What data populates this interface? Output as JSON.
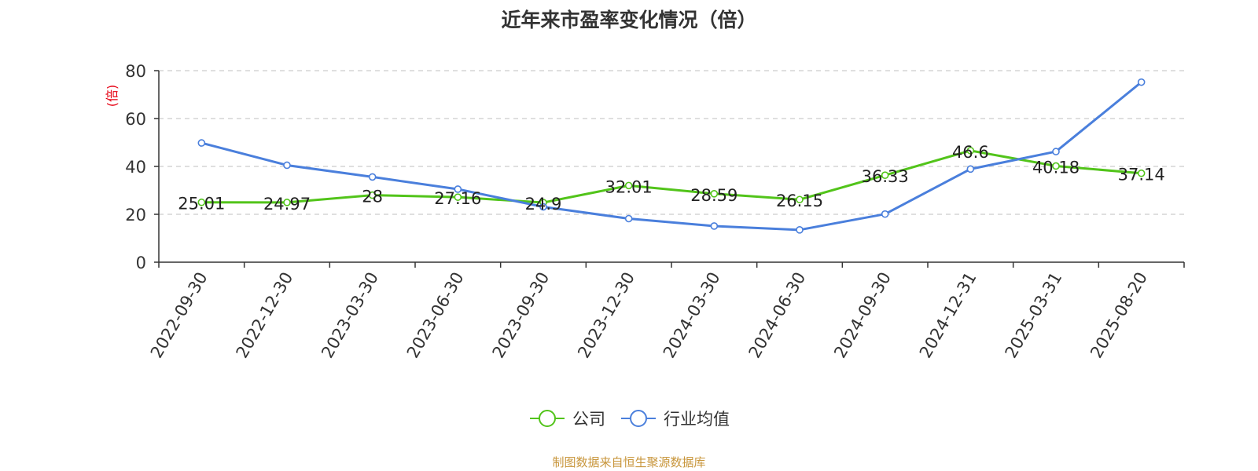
{
  "chart_data": {
    "type": "line",
    "title": "近年来市盈率变化情况（倍）",
    "xlabel": "",
    "ylabel": "(倍)",
    "ylim": [
      0,
      80
    ],
    "yticks": [
      0,
      20,
      40,
      60,
      80
    ],
    "grid": true,
    "legend_position": "bottom-center",
    "categories": [
      "2022-09-30",
      "2022-12-30",
      "2023-03-30",
      "2023-06-30",
      "2023-09-30",
      "2023-12-30",
      "2024-03-30",
      "2024-06-30",
      "2024-09-30",
      "2024-12-31",
      "2025-03-31",
      "2025-08-20"
    ],
    "series": [
      {
        "name": "公司",
        "color": "#52c41a",
        "show_labels": true,
        "values": [
          25.01,
          24.97,
          28,
          27.16,
          24.9,
          32.01,
          28.59,
          26.15,
          36.33,
          46.6,
          40.18,
          37.14
        ]
      },
      {
        "name": "行业均值",
        "color": "#4a7fdc",
        "show_labels": false,
        "values": [
          49.8,
          40.5,
          35.6,
          30.5,
          23.1,
          18.2,
          15.1,
          13.5,
          20.1,
          38.9,
          46.2,
          75.2
        ]
      }
    ]
  },
  "footer": {
    "source": "制图数据来自恒生聚源数据库",
    "source_color": "#c8963c"
  },
  "ylabel_color": "#e60012"
}
